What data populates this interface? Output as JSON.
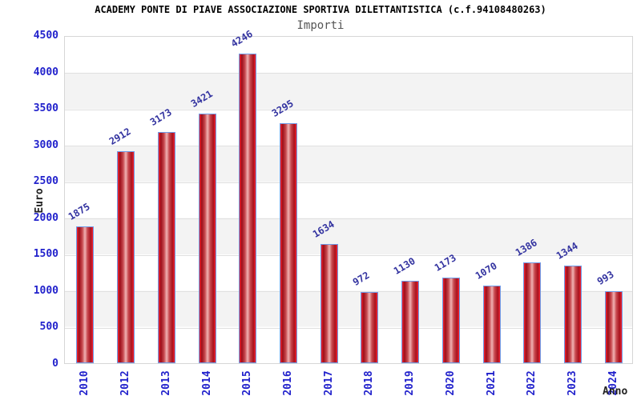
{
  "header": {
    "title": "ACADEMY PONTE DI PIAVE ASSOCIAZIONE SPORTIVA DILETTANTISTICA (c.f.94108480263)",
    "subtitle": "Importi"
  },
  "chart_data": {
    "type": "bar",
    "title": "ACADEMY PONTE DI PIAVE ASSOCIAZIONE SPORTIVA DILETTANTISTICA (c.f.94108480263)",
    "subtitle": "Importi",
    "xlabel": "Anno",
    "ylabel": "Euro",
    "categories": [
      "2010",
      "2012",
      "2013",
      "2014",
      "2015",
      "2016",
      "2017",
      "2018",
      "2019",
      "2020",
      "2021",
      "2022",
      "2023",
      "2024"
    ],
    "values": [
      1875,
      2912,
      3173,
      3421,
      4246,
      3295,
      1634,
      972,
      1130,
      1173,
      1070,
      1386,
      1344,
      993
    ],
    "ylim": [
      0,
      4500
    ],
    "yticks": [
      0,
      500,
      1000,
      1500,
      2000,
      2500,
      3000,
      3500,
      4000,
      4500
    ],
    "grid": "horizontal-alternating-bands",
    "legend": "none",
    "colors": {
      "bar_fill": "#e02030",
      "bar_highlight": "#f0b3b3",
      "bar_border": "#6f9ce8",
      "tick_label": "#2222cc",
      "value_label": "#3333a0",
      "band": "#f3f3f3",
      "gridline": "#e0e0e0",
      "subtitle": "#555555",
      "title": "#000000"
    }
  }
}
